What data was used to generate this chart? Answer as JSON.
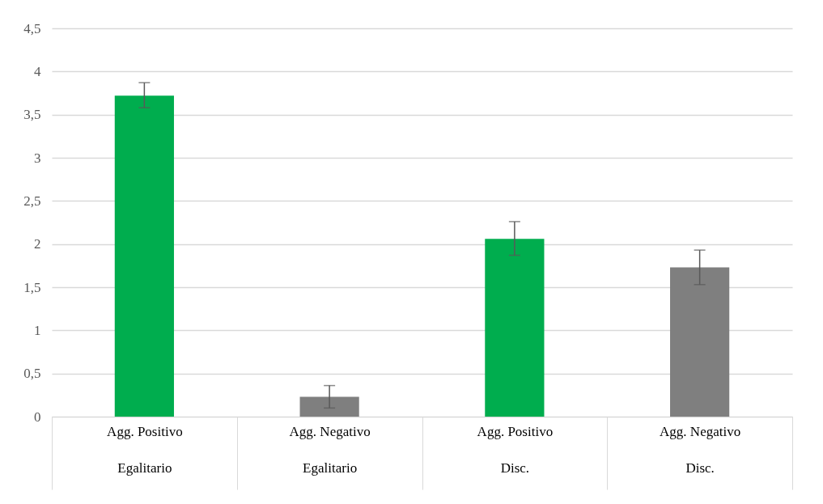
{
  "chart_data": {
    "type": "bar",
    "categories": [
      "Agg. Positivo\nEgalitario",
      "Agg. Negativo\nEgalitario",
      "Agg. Positivo\nDisc.",
      "Agg. Negativo\nDisc."
    ],
    "values": [
      3.72,
      0.23,
      2.06,
      1.73
    ],
    "colors": [
      "#00ad4e",
      "#7f7f7f",
      "#00ad4e",
      "#7f7f7f"
    ],
    "errors": [
      [
        3.58,
        3.87
      ],
      [
        0.1,
        0.36
      ],
      [
        1.87,
        2.26
      ],
      [
        1.53,
        1.93
      ]
    ],
    "ylim": [
      0,
      4.5
    ],
    "yticks": [
      0,
      {
        "value": 0.5,
        "label": "0,5"
      },
      1,
      {
        "value": 1.5,
        "label": "1,5"
      },
      2,
      {
        "value": 2.5,
        "label": "2,5"
      },
      3,
      {
        "value": 3.5,
        "label": "3,5"
      },
      4,
      {
        "value": 4.5,
        "label": "4,5"
      }
    ],
    "grid": "y"
  }
}
